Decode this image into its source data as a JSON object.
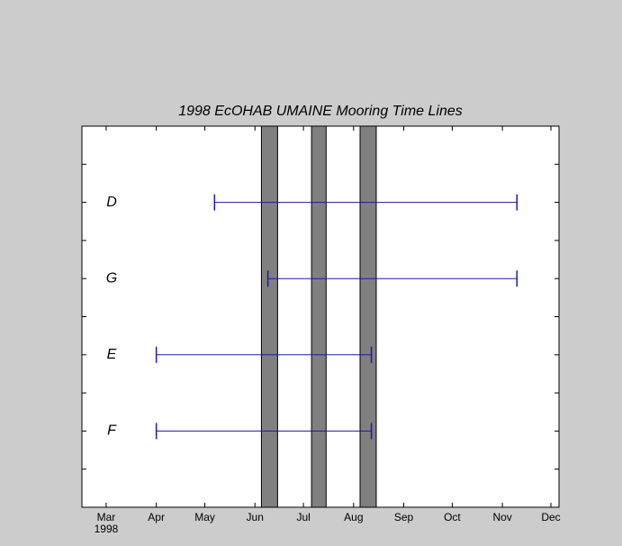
{
  "chart_data": {
    "type": "timeline",
    "title": "1998 EcOHAB UMAINE Mooring Time Lines",
    "xlim": [
      45,
      340
    ],
    "xticks": [
      {
        "value": 60,
        "label": "Mar"
      },
      {
        "value": 91,
        "label": "Apr"
      },
      {
        "value": 121,
        "label": "May"
      },
      {
        "value": 152,
        "label": "Jun"
      },
      {
        "value": 182,
        "label": "Jul"
      },
      {
        "value": 213,
        "label": "Aug"
      },
      {
        "value": 244,
        "label": "Sep"
      },
      {
        "value": 274,
        "label": "Oct"
      },
      {
        "value": 305,
        "label": "Nov"
      },
      {
        "value": 335,
        "label": "Dec"
      }
    ],
    "year_label": "1998",
    "ylim": [
      0,
      10
    ],
    "yticks": [
      1,
      2,
      3,
      4,
      5,
      6,
      7,
      8,
      9
    ],
    "line_color": "#1a1aa8",
    "band_color": "#808080",
    "rows": [
      {
        "label": "D",
        "y": 8,
        "start": 127,
        "end": 314
      },
      {
        "label": "G",
        "y": 6,
        "start": 160,
        "end": 314
      },
      {
        "label": "E",
        "y": 4,
        "start": 91,
        "end": 224
      },
      {
        "label": "F",
        "y": 2,
        "start": 91,
        "end": 224
      }
    ],
    "bands": [
      {
        "start": 156,
        "end": 166
      },
      {
        "start": 187,
        "end": 196
      },
      {
        "start": 217,
        "end": 227
      }
    ]
  }
}
